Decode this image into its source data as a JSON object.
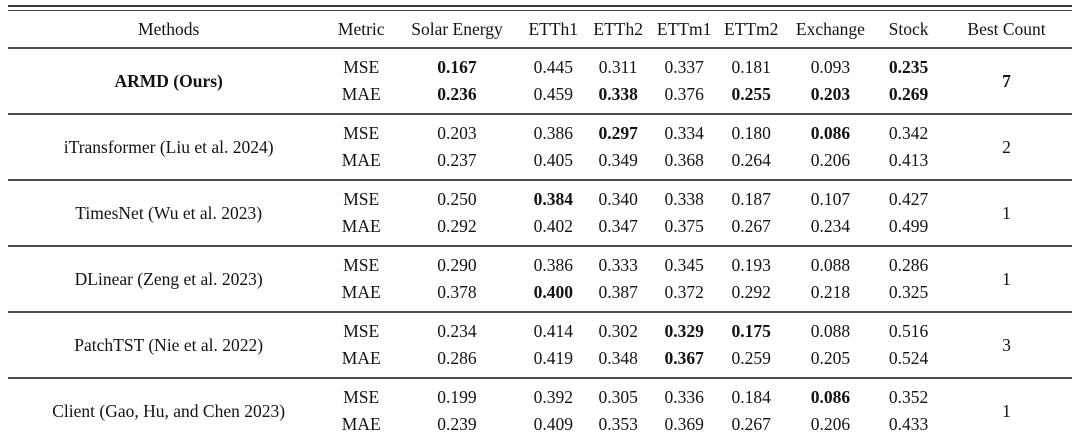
{
  "colors": {
    "text": "#131313",
    "rule": "#4d4d4d",
    "background": "#ffffff"
  },
  "table": {
    "columns": [
      "Methods",
      "Metric",
      "Solar Energy",
      "ETTh1",
      "ETTh2",
      "ETTm1",
      "ETTm2",
      "Exchange",
      "Stock",
      "Best Count"
    ],
    "metric_labels": [
      "MSE",
      "MAE"
    ],
    "rows": [
      {
        "method": "ARMD (Ours)",
        "method_bold": true,
        "mse": [
          "0.167",
          "0.445",
          "0.311",
          "0.337",
          "0.181",
          "0.093",
          "0.235"
        ],
        "mse_bold": [
          true,
          false,
          false,
          false,
          false,
          false,
          true
        ],
        "mae": [
          "0.236",
          "0.459",
          "0.338",
          "0.376",
          "0.255",
          "0.203",
          "0.269"
        ],
        "mae_bold": [
          true,
          false,
          true,
          false,
          true,
          true,
          true
        ],
        "best_count": "7",
        "best_count_bold": true
      },
      {
        "method": "iTransformer (Liu et al. 2024)",
        "method_bold": false,
        "mse": [
          "0.203",
          "0.386",
          "0.297",
          "0.334",
          "0.180",
          "0.086",
          "0.342"
        ],
        "mse_bold": [
          false,
          false,
          true,
          false,
          false,
          true,
          false
        ],
        "mae": [
          "0.237",
          "0.405",
          "0.349",
          "0.368",
          "0.264",
          "0.206",
          "0.413"
        ],
        "mae_bold": [
          false,
          false,
          false,
          false,
          false,
          false,
          false
        ],
        "best_count": "2",
        "best_count_bold": false
      },
      {
        "method": "TimesNet (Wu et al. 2023)",
        "method_bold": false,
        "mse": [
          "0.250",
          "0.384",
          "0.340",
          "0.338",
          "0.187",
          "0.107",
          "0.427"
        ],
        "mse_bold": [
          false,
          true,
          false,
          false,
          false,
          false,
          false
        ],
        "mae": [
          "0.292",
          "0.402",
          "0.347",
          "0.375",
          "0.267",
          "0.234",
          "0.499"
        ],
        "mae_bold": [
          false,
          false,
          false,
          false,
          false,
          false,
          false
        ],
        "best_count": "1",
        "best_count_bold": false
      },
      {
        "method": "DLinear (Zeng et al. 2023)",
        "method_bold": false,
        "mse": [
          "0.290",
          "0.386",
          "0.333",
          "0.345",
          "0.193",
          "0.088",
          "0.286"
        ],
        "mse_bold": [
          false,
          false,
          false,
          false,
          false,
          false,
          false
        ],
        "mae": [
          "0.378",
          "0.400",
          "0.387",
          "0.372",
          "0.292",
          "0.218",
          "0.325"
        ],
        "mae_bold": [
          false,
          true,
          false,
          false,
          false,
          false,
          false
        ],
        "best_count": "1",
        "best_count_bold": false
      },
      {
        "method": "PatchTST (Nie et al. 2022)",
        "method_bold": false,
        "mse": [
          "0.234",
          "0.414",
          "0.302",
          "0.329",
          "0.175",
          "0.088",
          "0.516"
        ],
        "mse_bold": [
          false,
          false,
          false,
          true,
          true,
          false,
          false
        ],
        "mae": [
          "0.286",
          "0.419",
          "0.348",
          "0.367",
          "0.259",
          "0.205",
          "0.524"
        ],
        "mae_bold": [
          false,
          false,
          false,
          true,
          false,
          false,
          false
        ],
        "best_count": "3",
        "best_count_bold": false
      },
      {
        "method": "Client (Gao, Hu, and Chen 2023)",
        "method_bold": false,
        "mse": [
          "0.199",
          "0.392",
          "0.305",
          "0.336",
          "0.184",
          "0.086",
          "0.352"
        ],
        "mse_bold": [
          false,
          false,
          false,
          false,
          false,
          true,
          false
        ],
        "mae": [
          "0.239",
          "0.409",
          "0.353",
          "0.369",
          "0.267",
          "0.206",
          "0.433"
        ],
        "mae_bold": [
          false,
          false,
          false,
          false,
          false,
          false,
          false
        ],
        "best_count": "1",
        "best_count_bold": false
      }
    ]
  }
}
